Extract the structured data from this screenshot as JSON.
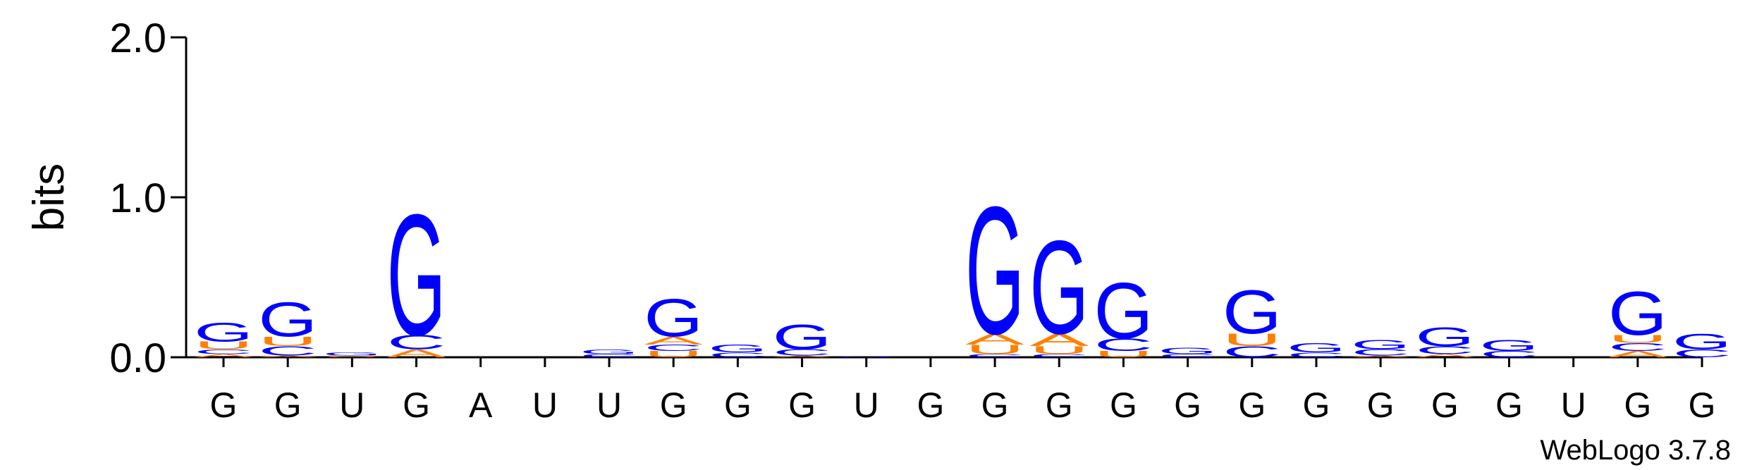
{
  "chart_data": {
    "type": "logo",
    "ylabel": "bits",
    "credit": "WebLogo 3.7.8",
    "ylim": [
      0,
      2
    ],
    "yticks": [
      {
        "value": 0,
        "label": "0.0"
      },
      {
        "value": 1,
        "label": "1.0"
      },
      {
        "value": 2,
        "label": "2.0"
      }
    ],
    "colors": {
      "A": "#ff8000",
      "U": "#ff8000",
      "C": "#0000ff",
      "G": "#0000ff"
    },
    "categories": [
      "G",
      "G",
      "U",
      "G",
      "A",
      "U",
      "U",
      "G",
      "G",
      "G",
      "U",
      "G",
      "G",
      "G",
      "G",
      "G",
      "G",
      "G",
      "G",
      "G",
      "G",
      "U",
      "G",
      "G"
    ],
    "positions": [
      [
        {
          "letter": "A",
          "bits": 0.02
        },
        {
          "letter": "C",
          "bits": 0.03
        },
        {
          "letter": "U",
          "bits": 0.05
        },
        {
          "letter": "G",
          "bits": 0.12
        }
      ],
      [
        {
          "letter": "A",
          "bits": 0.01
        },
        {
          "letter": "C",
          "bits": 0.06
        },
        {
          "letter": "U",
          "bits": 0.06
        },
        {
          "letter": "G",
          "bits": 0.22
        }
      ],
      [
        {
          "letter": "U",
          "bits": 0.01
        },
        {
          "letter": "G",
          "bits": 0.02
        }
      ],
      [
        {
          "letter": "A",
          "bits": 0.05
        },
        {
          "letter": "C",
          "bits": 0.09
        },
        {
          "letter": "G",
          "bits": 0.78
        }
      ],
      [],
      [],
      [
        {
          "letter": "C",
          "bits": 0.02
        },
        {
          "letter": "G",
          "bits": 0.03
        }
      ],
      [
        {
          "letter": "U",
          "bits": 0.04
        },
        {
          "letter": "C",
          "bits": 0.04
        },
        {
          "letter": "A",
          "bits": 0.05
        },
        {
          "letter": "G",
          "bits": 0.24
        }
      ],
      [
        {
          "letter": "C",
          "bits": 0.03
        },
        {
          "letter": "G",
          "bits": 0.05
        }
      ],
      [
        {
          "letter": "A",
          "bits": 0.01
        },
        {
          "letter": "C",
          "bits": 0.04
        },
        {
          "letter": "G",
          "bits": 0.16
        }
      ],
      [
        {
          "letter": "G",
          "bits": 0.005
        }
      ],
      [],
      [
        {
          "letter": "C",
          "bits": 0.02
        },
        {
          "letter": "U",
          "bits": 0.06
        },
        {
          "letter": "A",
          "bits": 0.07
        },
        {
          "letter": "G",
          "bits": 0.82
        }
      ],
      [
        {
          "letter": "C",
          "bits": 0.02
        },
        {
          "letter": "U",
          "bits": 0.05
        },
        {
          "letter": "A",
          "bits": 0.08
        },
        {
          "letter": "G",
          "bits": 0.6
        }
      ],
      [
        {
          "letter": "U",
          "bits": 0.04
        },
        {
          "letter": "C",
          "bits": 0.08
        },
        {
          "letter": "G",
          "bits": 0.36
        }
      ],
      [
        {
          "letter": "C",
          "bits": 0.02
        },
        {
          "letter": "G",
          "bits": 0.04
        }
      ],
      [
        {
          "letter": "C",
          "bits": 0.07
        },
        {
          "letter": "U",
          "bits": 0.08
        },
        {
          "letter": "G",
          "bits": 0.28
        }
      ],
      [
        {
          "letter": "C",
          "bits": 0.03
        },
        {
          "letter": "G",
          "bits": 0.06
        }
      ],
      [
        {
          "letter": "A",
          "bits": 0.01
        },
        {
          "letter": "C",
          "bits": 0.04
        },
        {
          "letter": "G",
          "bits": 0.06
        }
      ],
      [
        {
          "letter": "A",
          "bits": 0.02
        },
        {
          "letter": "C",
          "bits": 0.05
        },
        {
          "letter": "G",
          "bits": 0.12
        }
      ],
      [
        {
          "letter": "C",
          "bits": 0.04
        },
        {
          "letter": "G",
          "bits": 0.07
        }
      ],
      [],
      [
        {
          "letter": "A",
          "bits": 0.04
        },
        {
          "letter": "C",
          "bits": 0.05
        },
        {
          "letter": "U",
          "bits": 0.05
        },
        {
          "letter": "G",
          "bits": 0.28
        }
      ],
      [
        {
          "letter": "C",
          "bits": 0.05
        },
        {
          "letter": "G",
          "bits": 0.1
        }
      ]
    ]
  }
}
